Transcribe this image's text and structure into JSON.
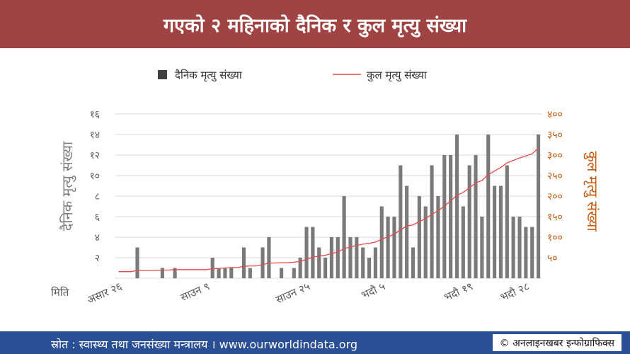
{
  "header": {
    "title": "गएको २ महिनाको दैनिक र कुल मृत्यु संख्या"
  },
  "footer": {
    "source": "स्रोत : स्वास्थ्य तथा जनसंख्या मन्त्रालय । www.ourworldindata.org",
    "credit": "© अनलाइनखबर इन्फोग्राफिक्स"
  },
  "chart_data": {
    "type": "bar",
    "legend": {
      "position": "top",
      "daily": "दैनिक मृत्यु संख्या",
      "cumulative": "कुल मृत्यु संख्या"
    },
    "ylabel_left": "दैनिक मृत्यु संख्या",
    "ylabel_right": "कुल मृत्यु संख्या",
    "xlabel": "मिति",
    "ylim_left": [
      0,
      16
    ],
    "ylim_right": [
      0,
      400
    ],
    "yticks_left": [
      {
        "v": 2,
        "label": "२"
      },
      {
        "v": 4,
        "label": "४"
      },
      {
        "v": 6,
        "label": "६"
      },
      {
        "v": 8,
        "label": "८"
      },
      {
        "v": 10,
        "label": "१०"
      },
      {
        "v": 12,
        "label": "१२"
      },
      {
        "v": 14,
        "label": "१४"
      },
      {
        "v": 16,
        "label": "१६"
      }
    ],
    "yticks_right": [
      {
        "v": 50,
        "label": "५०"
      },
      {
        "v": 100,
        "label": "१००"
      },
      {
        "v": 150,
        "label": "१५०"
      },
      {
        "v": 200,
        "label": "२००"
      },
      {
        "v": 250,
        "label": "२५०"
      },
      {
        "v": 300,
        "label": "३००"
      },
      {
        "v": 350,
        "label": "३५०"
      },
      {
        "v": 400,
        "label": "४००"
      }
    ],
    "xticks": [
      {
        "i": 0,
        "label": "असार २६"
      },
      {
        "i": 14,
        "label": "साउन ९"
      },
      {
        "i": 30,
        "label": "साउन २५"
      },
      {
        "i": 42,
        "label": "भदौ ५"
      },
      {
        "i": 56,
        "label": "भदौ १९"
      },
      {
        "i": 65,
        "label": "भदौ २८"
      }
    ],
    "grid": true,
    "color_bars": "#7a7a7a",
    "color_line": "#e84a4a",
    "daily_deaths": [
      0,
      0,
      0,
      3,
      0,
      0,
      0,
      1,
      0,
      1,
      0,
      0,
      0,
      0,
      0,
      2,
      1,
      1,
      1,
      0,
      3,
      1,
      0,
      3,
      4,
      0,
      1,
      0,
      1,
      2,
      5,
      5,
      3,
      2,
      4,
      4,
      8,
      4,
      4,
      3,
      2,
      3,
      7,
      6,
      6,
      11,
      9,
      3,
      8,
      7,
      11,
      8,
      12,
      12,
      14,
      7,
      11,
      12,
      6,
      14,
      9,
      9,
      11,
      6,
      6,
      5,
      5,
      14
    ],
    "cumulative_deaths": [
      16,
      16,
      16,
      19,
      19,
      19,
      19,
      20,
      20,
      21,
      21,
      21,
      21,
      21,
      21,
      23,
      24,
      25,
      26,
      26,
      29,
      30,
      30,
      33,
      37,
      37,
      38,
      38,
      39,
      41,
      46,
      51,
      54,
      56,
      60,
      64,
      72,
      76,
      80,
      83,
      85,
      88,
      95,
      101,
      107,
      118,
      127,
      130,
      138,
      145,
      156,
      164,
      176,
      188,
      202,
      209,
      220,
      232,
      238,
      252,
      261,
      270,
      281,
      287,
      293,
      298,
      303,
      317
    ]
  }
}
